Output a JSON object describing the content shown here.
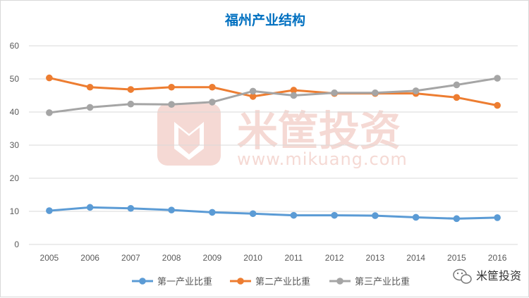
{
  "chart_data": {
    "type": "line",
    "title": "福州产业结构",
    "x": [
      "2005",
      "2006",
      "2007",
      "2008",
      "2009",
      "2010",
      "2011",
      "2012",
      "2013",
      "2014",
      "2015",
      "2016"
    ],
    "ylim": [
      0,
      60
    ],
    "yticks": [
      0,
      10,
      20,
      30,
      40,
      50,
      60
    ],
    "grid": true,
    "legend_position": "bottom",
    "series": [
      {
        "name": "第一产业比重",
        "color": "#5b9bd5",
        "values": [
          10.2,
          11.2,
          10.9,
          10.4,
          9.7,
          9.3,
          8.8,
          8.8,
          8.7,
          8.2,
          7.8,
          8.1
        ]
      },
      {
        "name": "第二产业比重",
        "color": "#ed7d31",
        "values": [
          50.3,
          47.5,
          46.8,
          47.5,
          47.5,
          44.7,
          46.6,
          45.6,
          45.6,
          45.6,
          44.4,
          42.0
        ]
      },
      {
        "name": "第三产业比重",
        "color": "#a5a5a5",
        "values": [
          39.8,
          41.4,
          42.4,
          42.3,
          43.0,
          46.3,
          45.0,
          45.8,
          45.8,
          46.4,
          48.2,
          50.2
        ]
      }
    ],
    "colors": {
      "title": "#0070c0",
      "grid": "#d9d9d9",
      "tick": "#595959",
      "legend_text": "#595959"
    }
  },
  "watermark": {
    "brand_text": "米筐投资",
    "url_text": "www.mikuang.com",
    "color": "#f2cdc6"
  },
  "badge": {
    "label": "米筐投资",
    "icon": "wechat-icon"
  }
}
